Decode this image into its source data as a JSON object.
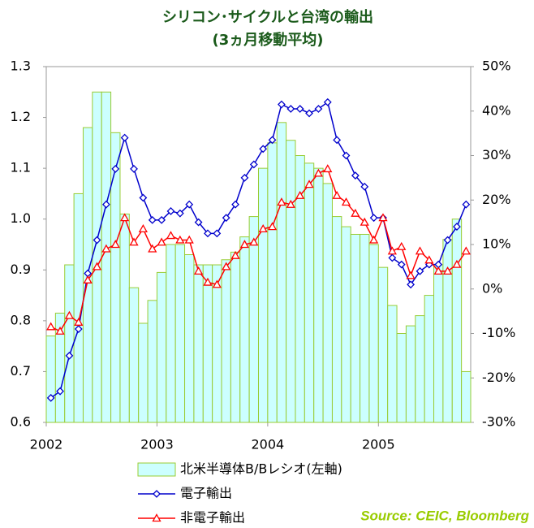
{
  "chart_data": {
    "type": "bar",
    "title": "シリコン･サイクルと台湾の輸出",
    "subtitle": "(3ヵ月移動平均)",
    "annotation": "Source: CEIC, Bloomberg",
    "categories": [
      "2002",
      null,
      null,
      null,
      null,
      null,
      null,
      null,
      null,
      null,
      null,
      null,
      "2003",
      null,
      null,
      null,
      null,
      null,
      null,
      null,
      null,
      null,
      null,
      null,
      "2004",
      null,
      null,
      null,
      null,
      null,
      null,
      null,
      null,
      null,
      null,
      null,
      "2005",
      null,
      null,
      null,
      null,
      null,
      null,
      null,
      null,
      null
    ],
    "series": [
      {
        "name": "北米半導体B/Bレシオ(左軸)",
        "type": "bar",
        "axis": "y",
        "color": "#ccffff",
        "edge_color": "#99cc33",
        "values": [
          0.77,
          0.815,
          0.91,
          1.05,
          1.18,
          1.25,
          1.25,
          1.17,
          1.01,
          0.865,
          0.795,
          0.84,
          0.895,
          0.95,
          0.95,
          0.93,
          0.91,
          0.91,
          0.91,
          0.92,
          0.935,
          0.965,
          1.005,
          1.1,
          1.15,
          1.19,
          1.155,
          1.125,
          1.11,
          1.1,
          1.07,
          1.005,
          0.985,
          0.97,
          0.97,
          0.95,
          0.905,
          0.83,
          0.775,
          0.79,
          0.81,
          0.85,
          0.91,
          0.96,
          1.0,
          0.7
        ]
      },
      {
        "name": "電子輸出",
        "type": "line",
        "axis": "y2",
        "color": "#0000cc",
        "marker": "diamond",
        "values": [
          -24.5,
          -23,
          -15,
          -9,
          3.5,
          11,
          19,
          27,
          34,
          27,
          20.5,
          15.5,
          15.5,
          17.5,
          17,
          19,
          15,
          12.5,
          12.5,
          16,
          19,
          25,
          28,
          31.5,
          33.5,
          41.5,
          40.5,
          40.5,
          39.5,
          40.5,
          42,
          33.5,
          30,
          25.5,
          23,
          16,
          16,
          7,
          5.5,
          1,
          4,
          5.5,
          5.5,
          11,
          14,
          19
        ]
      },
      {
        "name": "非電子輸出",
        "type": "line",
        "axis": "y2",
        "color": "#ff0000",
        "marker": "triangle",
        "values": [
          -8.5,
          -9.5,
          -6,
          -7.5,
          2,
          5,
          9,
          10,
          16,
          10.5,
          13.5,
          9,
          10.5,
          12,
          11,
          11,
          4,
          1.5,
          1,
          5,
          7.5,
          10,
          10.5,
          13.5,
          14,
          19.5,
          19,
          21,
          23.5,
          26,
          27,
          21,
          19.5,
          17,
          15,
          11,
          16,
          8.5,
          9.5,
          3,
          8.5,
          6.5,
          4,
          4,
          5.5,
          8.5
        ]
      }
    ],
    "ylim": [
      0.6,
      1.3
    ],
    "yticks": [
      0.6,
      0.7,
      0.8,
      0.9,
      {
        "value": 1,
        "label": "1.0"
      },
      1.1,
      1.2,
      1.3
    ],
    "y2lim": [
      -30,
      50
    ],
    "y2ticks": [
      {
        "value": -30,
        "label": "-30%"
      },
      {
        "value": -20,
        "label": "-20%"
      },
      {
        "value": -10,
        "label": "-10%"
      },
      {
        "value": 0,
        "label": "0%"
      },
      {
        "value": 10,
        "label": "10%"
      },
      {
        "value": 20,
        "label": "20%"
      },
      {
        "value": 30,
        "label": "30%"
      },
      {
        "value": 40,
        "label": "40%"
      },
      {
        "value": 50,
        "label": "50%"
      }
    ],
    "grid": false
  }
}
